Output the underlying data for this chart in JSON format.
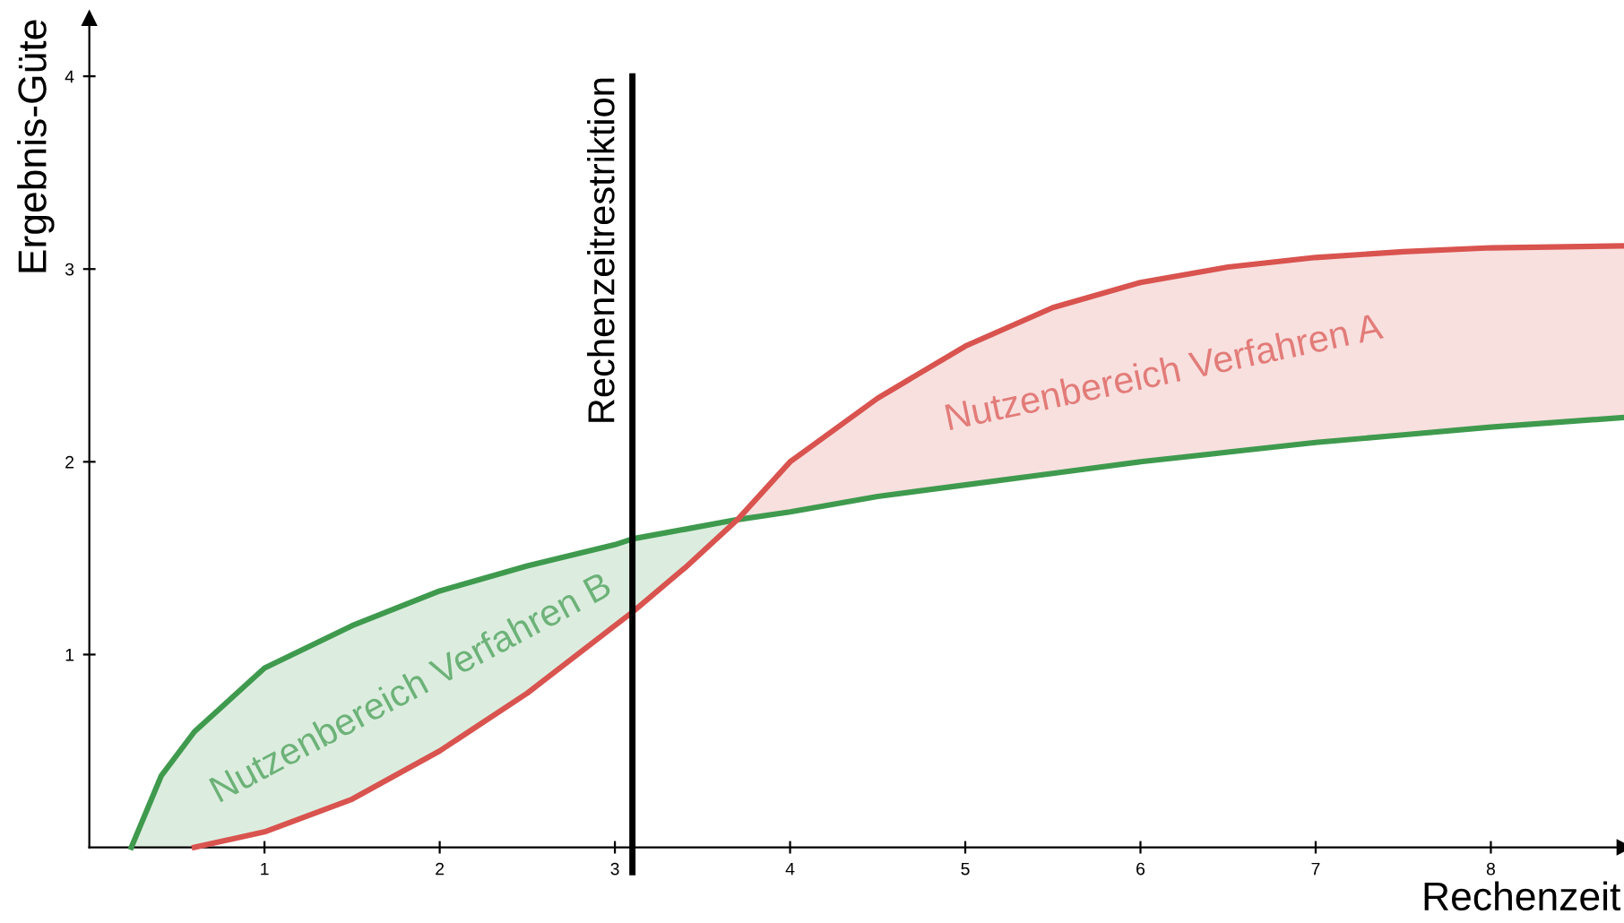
{
  "chart_data": {
    "type": "line",
    "xlabel": "Rechenzeit",
    "ylabel": "Ergebnis-Güte",
    "xlim": [
      0,
      8.76
    ],
    "ylim": [
      0,
      4.3
    ],
    "xticks": [
      1,
      2,
      3,
      4,
      5,
      6,
      7,
      8
    ],
    "yticks": [
      1,
      2,
      3,
      4
    ],
    "grid": false,
    "marker": "none",
    "line_style": "solid",
    "series": [
      {
        "color": "#3f9a4e",
        "x": [
          0.24,
          0.41,
          0.6,
          1,
          1.5,
          2,
          2.5,
          3,
          3.1,
          3.4,
          3.7,
          4,
          4.5,
          5,
          5.5,
          6,
          6.5,
          7,
          7.5,
          8,
          8.76
        ],
        "values": [
          0,
          0.37,
          0.6,
          0.93,
          1.15,
          1.33,
          1.46,
          1.57,
          1.6,
          1.65,
          1.7,
          1.74,
          1.82,
          1.88,
          1.94,
          2.0,
          2.05,
          2.1,
          2.14,
          2.18,
          2.23
        ],
        "lower": [
          0,
          0,
          0,
          0.08,
          0.25,
          0.5,
          0.8,
          1.15,
          1.22,
          1.45,
          1.7,
          null,
          null,
          null,
          null,
          null,
          null,
          null,
          null,
          null,
          null
        ],
        "upper": [
          0,
          0.37,
          0.6,
          0.93,
          1.15,
          1.33,
          1.46,
          1.57,
          1.6,
          1.65,
          1.7,
          null,
          null,
          null,
          null,
          null,
          null,
          null,
          null,
          null,
          null
        ]
      },
      {
        "color": "#d9534f",
        "x": [
          0.6,
          1,
          1.5,
          2,
          2.5,
          3,
          3.1,
          3.4,
          3.7,
          4,
          4.5,
          5,
          5.5,
          6,
          6.5,
          7,
          7.5,
          8,
          8.76
        ],
        "values": [
          0,
          0.08,
          0.25,
          0.5,
          0.8,
          1.15,
          1.22,
          1.45,
          1.7,
          2.0,
          2.33,
          2.6,
          2.8,
          2.93,
          3.01,
          3.06,
          3.09,
          3.11,
          3.12
        ],
        "lower": [
          null,
          null,
          null,
          null,
          null,
          null,
          null,
          null,
          1.7,
          1.74,
          1.82,
          1.88,
          1.94,
          2.0,
          2.05,
          2.1,
          2.14,
          2.18,
          2.23
        ],
        "upper": [
          null,
          null,
          null,
          null,
          null,
          null,
          null,
          null,
          1.7,
          2.0,
          2.33,
          2.6,
          2.8,
          2.93,
          3.01,
          3.06,
          3.09,
          3.11,
          3.12
        ]
      }
    ],
    "ref_lines": [
      {
        "axis": "x",
        "value": 3.1,
        "label": "Rechenzeitrestriktion",
        "color": "#000000"
      }
    ],
    "annotations": [
      "Nutzenbereich Verfahren B",
      "Nutzenbereich Verfahren A"
    ]
  }
}
